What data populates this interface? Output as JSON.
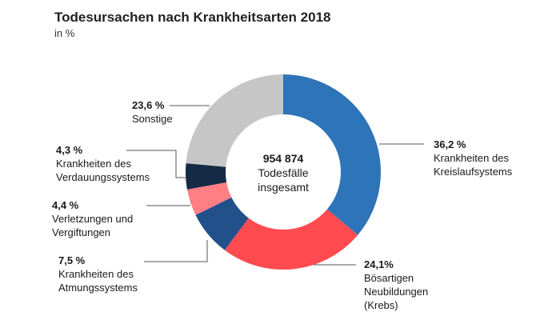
{
  "chart_data": {
    "type": "pie",
    "title": "Todesursachen nach Krankheitsarten 2018",
    "subtitle": "in %",
    "center": {
      "total": "954 874",
      "line1": "Todesfälle",
      "line2": "insgesamt"
    },
    "slices": [
      {
        "value": 36.2,
        "value_label": "36,2 %",
        "label_lines": [
          "Krankheiten des",
          "Kreislaufsystems"
        ],
        "color": "#2e74b8"
      },
      {
        "value": 24.1,
        "value_label": "24,1%",
        "label_lines": [
          "Bösartigen",
          "Neubildungen",
          "(Krebs)"
        ],
        "color": "#ff4a50"
      },
      {
        "value": 7.5,
        "value_label": "7,5 %",
        "label_lines": [
          "Krankheiten des",
          "Atmungssystems"
        ],
        "color": "#22508a"
      },
      {
        "value": 4.4,
        "value_label": "4,4 %",
        "label_lines": [
          "Verletzungen und",
          "Vergiftungen"
        ],
        "color": "#ff7f84"
      },
      {
        "value": 4.3,
        "value_label": "4,3 %",
        "label_lines": [
          "Krankheiten des",
          "Verdauungssystems"
        ],
        "color": "#152a45"
      },
      {
        "value": 23.6,
        "value_label": "23,6 %",
        "label_lines": [
          "Sonstige"
        ],
        "color": "#c6c6c6"
      }
    ]
  }
}
